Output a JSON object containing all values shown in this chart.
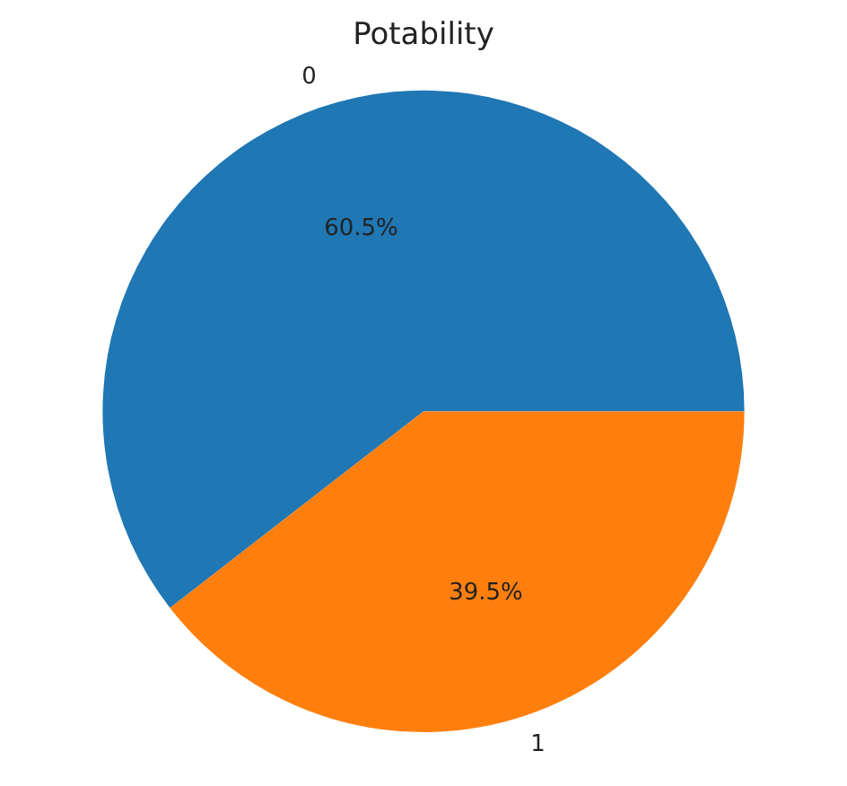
{
  "chart_data": {
    "type": "pie",
    "title": "Potability",
    "categories": [
      "0",
      "1"
    ],
    "values": [
      60.5,
      39.5
    ],
    "colors": [
      "#1f77b4",
      "#ff7f0e"
    ],
    "value_labels": [
      "60.5%",
      "39.5%"
    ],
    "legend": false
  }
}
